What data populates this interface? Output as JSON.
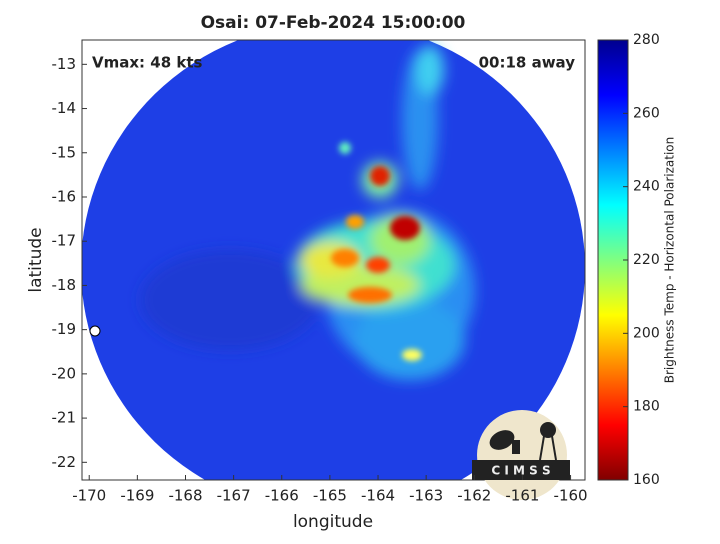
{
  "chart_data": {
    "type": "heatmap",
    "title": "Osai: 07-Feb-2024 15:00:00",
    "annotations": [
      "Vmax: 48 kts",
      "00:18 away"
    ],
    "xlabel": "longitude",
    "ylabel": "latitude",
    "xlim": [
      -170.15,
      -159.7
    ],
    "xticks": [
      -170,
      -169,
      -168,
      -167,
      -166,
      -165,
      -164,
      -163,
      -162,
      -161,
      -160
    ],
    "ylim": [
      -22.4,
      -12.45
    ],
    "yticks": [
      -22,
      -21,
      -20,
      -19,
      -18,
      -17,
      -16,
      -15,
      -14,
      -13
    ],
    "colorbar": {
      "label": "Brightness Temp - Horizontal Polarization",
      "lim": [
        160,
        280
      ],
      "ticks": [
        160,
        180,
        200,
        220,
        240,
        260,
        280
      ],
      "colormap": [
        "#800000",
        "#ff0000",
        "#ff8000",
        "#ffff00",
        "#80ff80",
        "#00ffff",
        "#0080ff",
        "#0000ff",
        "#00008f"
      ]
    },
    "logo": "C I M S S"
  }
}
